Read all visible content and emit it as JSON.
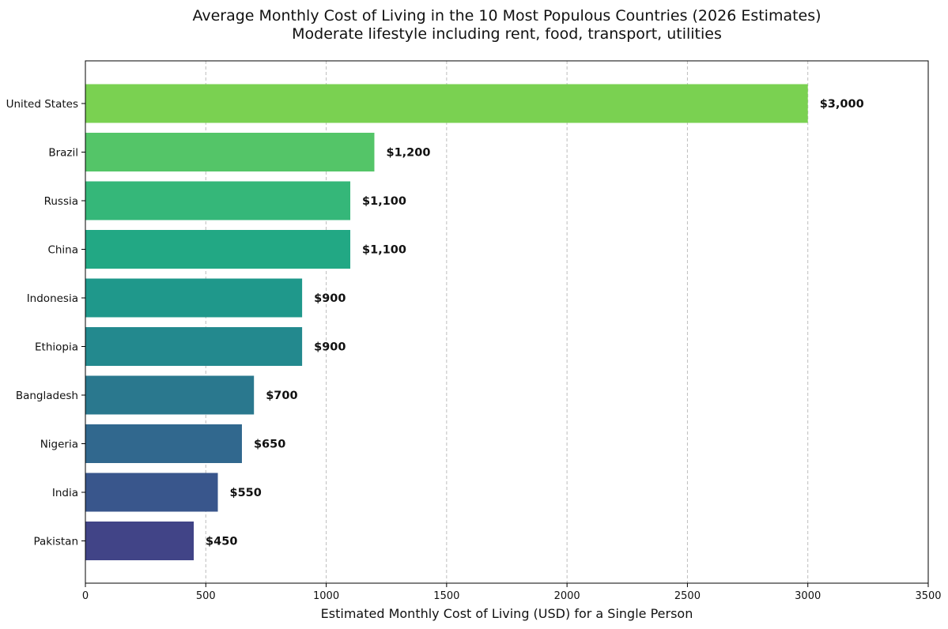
{
  "chart_data": {
    "type": "bar",
    "orientation": "horizontal",
    "title": "Average Monthly Cost of Living in the 10 Most Populous Countries (2026 Estimates)",
    "subtitle": "Moderate lifestyle including rent, food, transport, utilities",
    "xlabel": "Estimated Monthly Cost of Living (USD) for a Single Person",
    "ylabel": "",
    "xlim": [
      0,
      3500
    ],
    "xticks": [
      0,
      500,
      1000,
      1500,
      2000,
      2500,
      3000,
      3500
    ],
    "grid": "x-dashed",
    "categories": [
      "United States",
      "Brazil",
      "Russia",
      "China",
      "Indonesia",
      "Ethiopia",
      "Bangladesh",
      "Nigeria",
      "India",
      "Pakistan"
    ],
    "values": [
      3000,
      1200,
      1100,
      1100,
      900,
      900,
      700,
      650,
      550,
      450
    ],
    "value_labels": [
      "$3,000",
      "$1,200",
      "$1,100",
      "$1,100",
      "$900",
      "$900",
      "$700",
      "$650",
      "$550",
      "$450"
    ],
    "colors": [
      "#7ad151",
      "#54c568",
      "#35b779",
      "#22a884",
      "#1f988b",
      "#23898e",
      "#2a788e",
      "#31688e",
      "#39568c",
      "#414487"
    ]
  }
}
